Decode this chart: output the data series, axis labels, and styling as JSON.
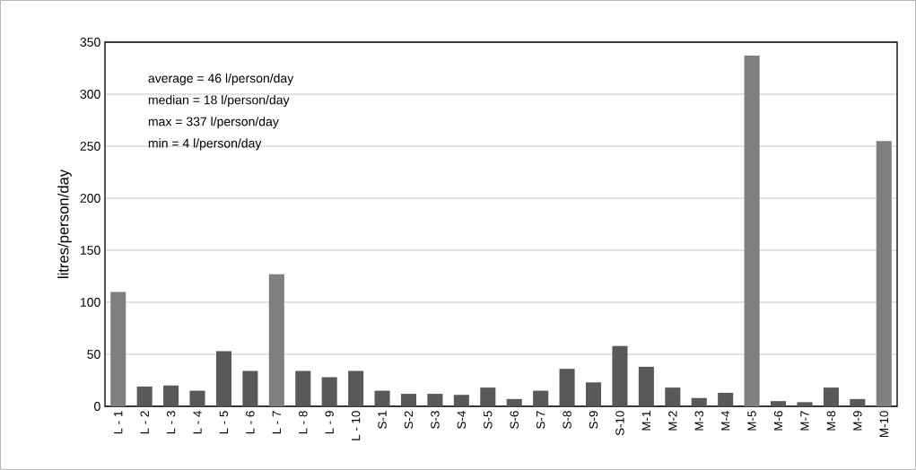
{
  "chart_data": {
    "type": "bar",
    "ylabel": "litres/person/day",
    "categories": [
      "L - 1",
      "L - 2",
      "L - 3",
      "L - 4",
      "L - 5",
      "L - 6",
      "L - 7",
      "L - 8",
      "L - 9",
      "L - 10",
      "S-1",
      "S-2",
      "S-3",
      "S-4",
      "S-5",
      "S-6",
      "S-7",
      "S-8",
      "S-9",
      "S-10",
      "M-1",
      "M-2",
      "M-3",
      "M-4",
      "M-5",
      "M-6",
      "M-7",
      "M-8",
      "M-9",
      "M-10"
    ],
    "values": [
      110,
      19,
      20,
      15,
      53,
      34,
      127,
      34,
      28,
      34,
      15,
      12,
      12,
      11,
      18,
      7,
      15,
      36,
      23,
      58,
      38,
      18,
      8,
      13,
      337,
      5,
      4,
      18,
      7,
      255
    ],
    "colors": [
      "#7f7f7f",
      "#595959",
      "#595959",
      "#595959",
      "#595959",
      "#595959",
      "#7f7f7f",
      "#595959",
      "#595959",
      "#595959",
      "#595959",
      "#595959",
      "#595959",
      "#595959",
      "#595959",
      "#595959",
      "#595959",
      "#595959",
      "#595959",
      "#595959",
      "#595959",
      "#595959",
      "#595959",
      "#595959",
      "#7f7f7f",
      "#595959",
      "#595959",
      "#595959",
      "#595959",
      "#7f7f7f"
    ],
    "ylim": [
      0,
      350
    ],
    "yticks": [
      0,
      50,
      100,
      150,
      200,
      250,
      300,
      350
    ],
    "grid": "y",
    "annotations": [
      "average = 46 l/person/day",
      "median = 18 l/person/day",
      "max = 337 l/person/day",
      "min = 4 l/person/day"
    ]
  }
}
